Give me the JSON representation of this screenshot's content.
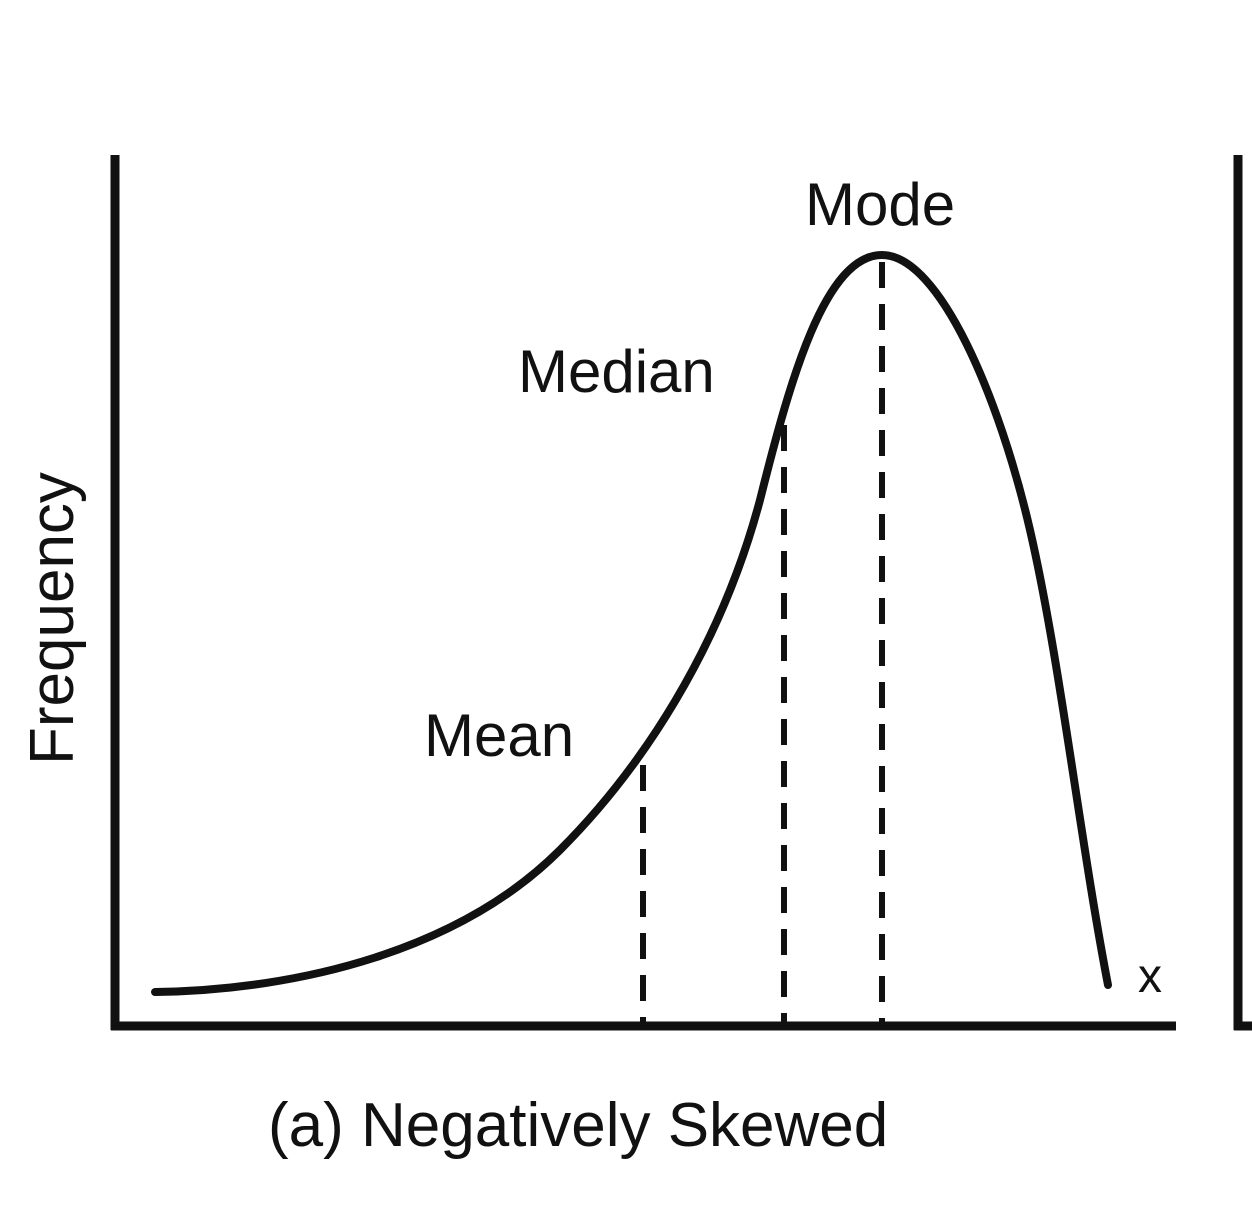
{
  "diagram": {
    "caption": "(a) Negatively Skewed",
    "y_axis_label": "Frequency",
    "x_axis_label": "x",
    "markers": [
      {
        "id": "mean",
        "label": "Mean"
      },
      {
        "id": "median",
        "label": "Median"
      },
      {
        "id": "mode",
        "label": "Mode"
      }
    ],
    "colors": {
      "ink": "#111111",
      "background": "#ffffff"
    }
  }
}
